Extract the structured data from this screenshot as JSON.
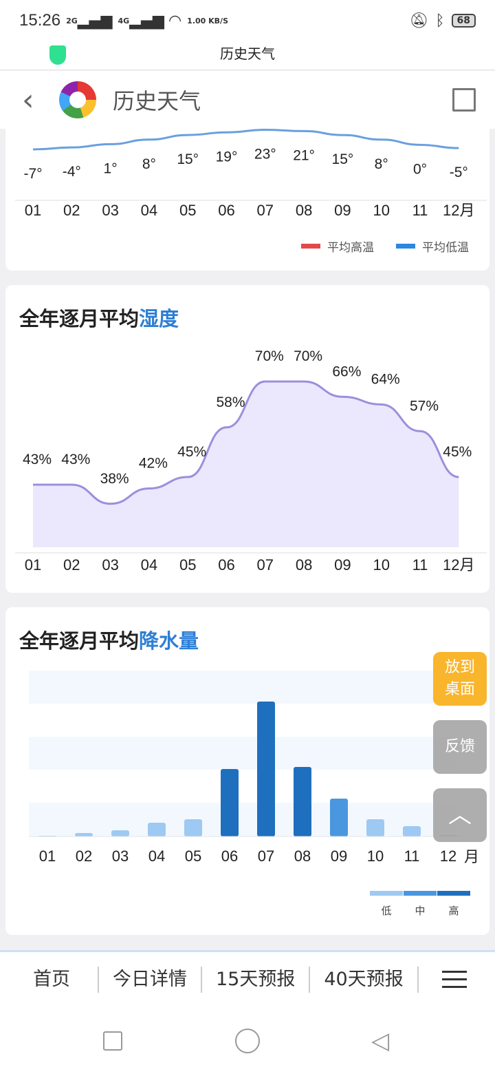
{
  "status_bar": {
    "time": "15:26",
    "signal1": "2G",
    "signal2": "4G",
    "net_speed": "1.00 KB/S",
    "battery": "68"
  },
  "title_bar": {
    "title": "历史天气"
  },
  "app_bar": {
    "title": "历史天气"
  },
  "months": [
    "01",
    "02",
    "03",
    "04",
    "05",
    "06",
    "07",
    "08",
    "09",
    "10",
    "11",
    "12月"
  ],
  "temperature": {
    "legend": {
      "high": "平均高温",
      "low": "平均低温"
    },
    "colors": {
      "high": "#e24a4a",
      "low": "#2a88e0"
    },
    "low_labels": [
      "-7°",
      "-4°",
      "1°",
      "8°",
      "15°",
      "19°",
      "23°",
      "21°",
      "15°",
      "8°",
      "0°",
      "-5°"
    ],
    "low_values": [
      -7,
      -4,
      1,
      8,
      15,
      19,
      23,
      21,
      15,
      8,
      0,
      -5
    ]
  },
  "chart_data": [
    {
      "type": "area",
      "title_prefix": "全年逐月平均",
      "title_highlight": "湿度",
      "categories": [
        "01",
        "02",
        "03",
        "04",
        "05",
        "06",
        "07",
        "08",
        "09",
        "10",
        "11",
        "12月"
      ],
      "values": [
        43,
        43,
        38,
        42,
        45,
        58,
        70,
        70,
        66,
        64,
        57,
        45
      ],
      "labels": [
        "43%",
        "43%",
        "38%",
        "42%",
        "45%",
        "58%",
        "70%",
        "70%",
        "66%",
        "64%",
        "57%",
        "45%"
      ],
      "color": "#9b8fdc"
    },
    {
      "type": "bar",
      "title_prefix": "全年逐月平均",
      "title_highlight": "降水量",
      "categories": [
        "01",
        "02",
        "03",
        "04",
        "05",
        "06",
        "07",
        "08",
        "09",
        "10",
        "11",
        "12"
      ],
      "unit_label": "月",
      "values": [
        1,
        5,
        9,
        20,
        25,
        98,
        196,
        101,
        55,
        25,
        15,
        2
      ],
      "levels": [
        "low",
        "low",
        "low",
        "low",
        "low",
        "high",
        "high",
        "high",
        "mid",
        "low",
        "low",
        "low"
      ],
      "legend": {
        "low": "低",
        "mid": "中",
        "high": "高"
      },
      "colors": {
        "low": "#9ec9f2",
        "mid": "#4a97e0",
        "high": "#1f6fbf"
      }
    }
  ],
  "float_buttons": {
    "desktop": "放到桌面",
    "feedback": "反馈"
  },
  "bottom_nav": [
    "首页",
    "今日详情",
    "15天预报",
    "40天预报"
  ]
}
